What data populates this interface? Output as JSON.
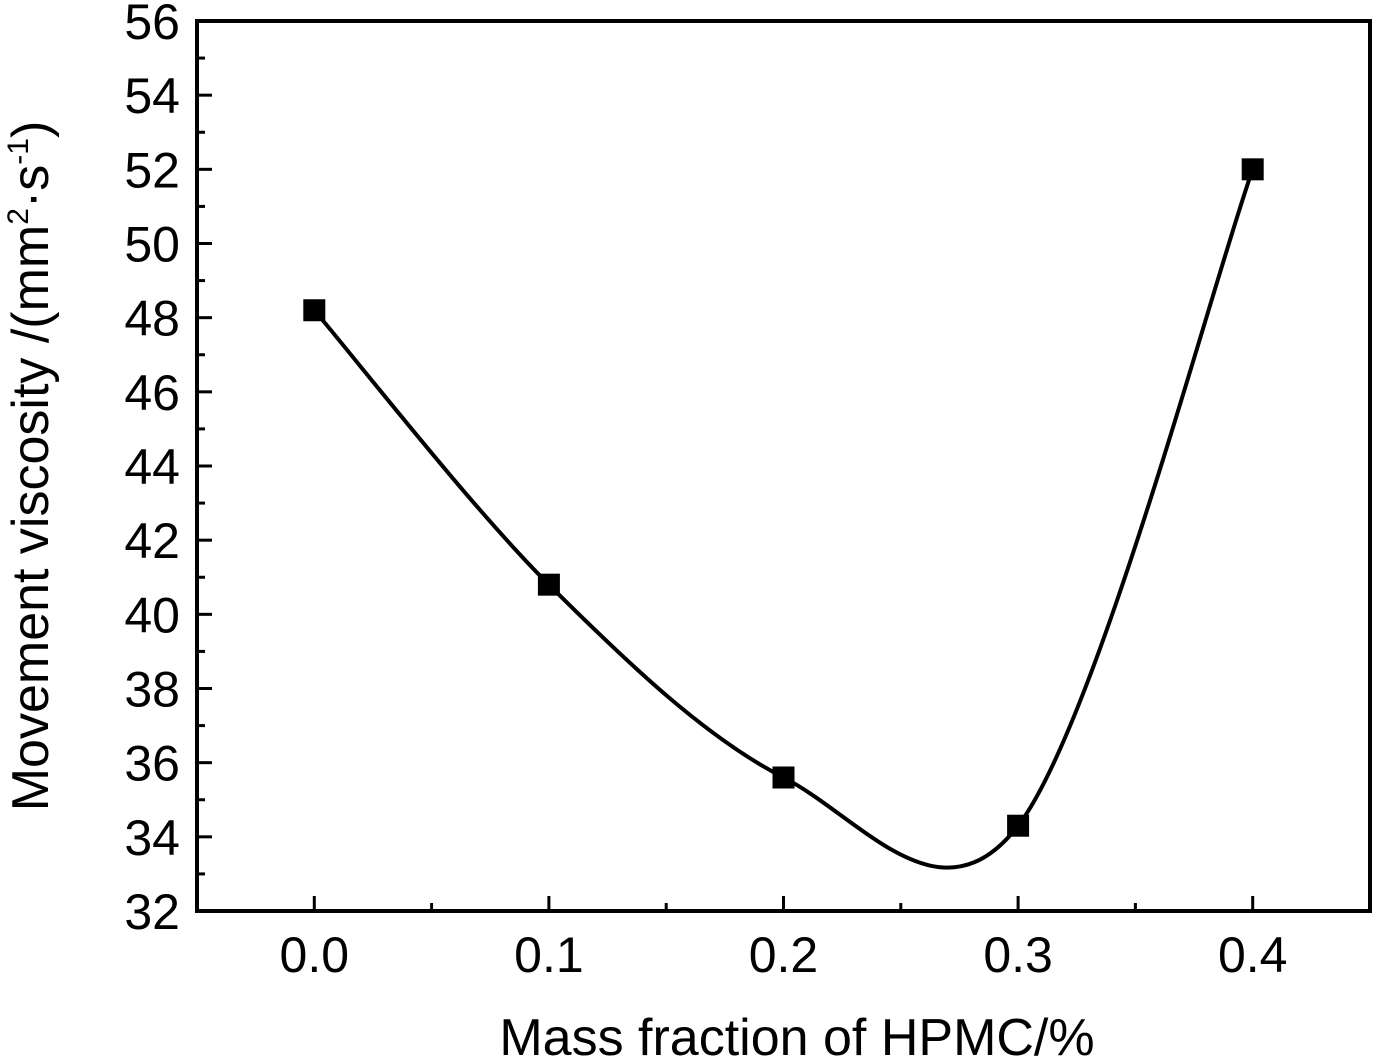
{
  "chart_data": {
    "type": "line",
    "xlabel": "Mass fraction of HPMC/%",
    "ylabel": {
      "text_1": "Movement viscosity /(mm",
      "sup_1": "2",
      "text_2": "·s",
      "sup_2": "-1",
      "text_3": ")"
    },
    "xlim": [
      -0.05,
      0.45
    ],
    "ylim": [
      32,
      56
    ],
    "x_ticks": [
      0.0,
      0.1,
      0.2,
      0.3,
      0.4
    ],
    "x_tick_labels": [
      "0.0",
      "0.1",
      "0.2",
      "0.3",
      "0.4"
    ],
    "y_ticks": [
      32,
      34,
      36,
      38,
      40,
      42,
      44,
      46,
      48,
      50,
      52,
      54,
      56
    ],
    "y_tick_labels": [
      "32",
      "34",
      "36",
      "38",
      "40",
      "42",
      "44",
      "46",
      "48",
      "50",
      "52",
      "54",
      "56"
    ],
    "grid": false,
    "series": [
      {
        "marker": "square",
        "smooth": true,
        "color": "#000000",
        "x": [
          0.0,
          0.1,
          0.2,
          0.3,
          0.4
        ],
        "y": [
          48.2,
          40.8,
          35.6,
          34.3,
          52.0
        ]
      }
    ]
  }
}
